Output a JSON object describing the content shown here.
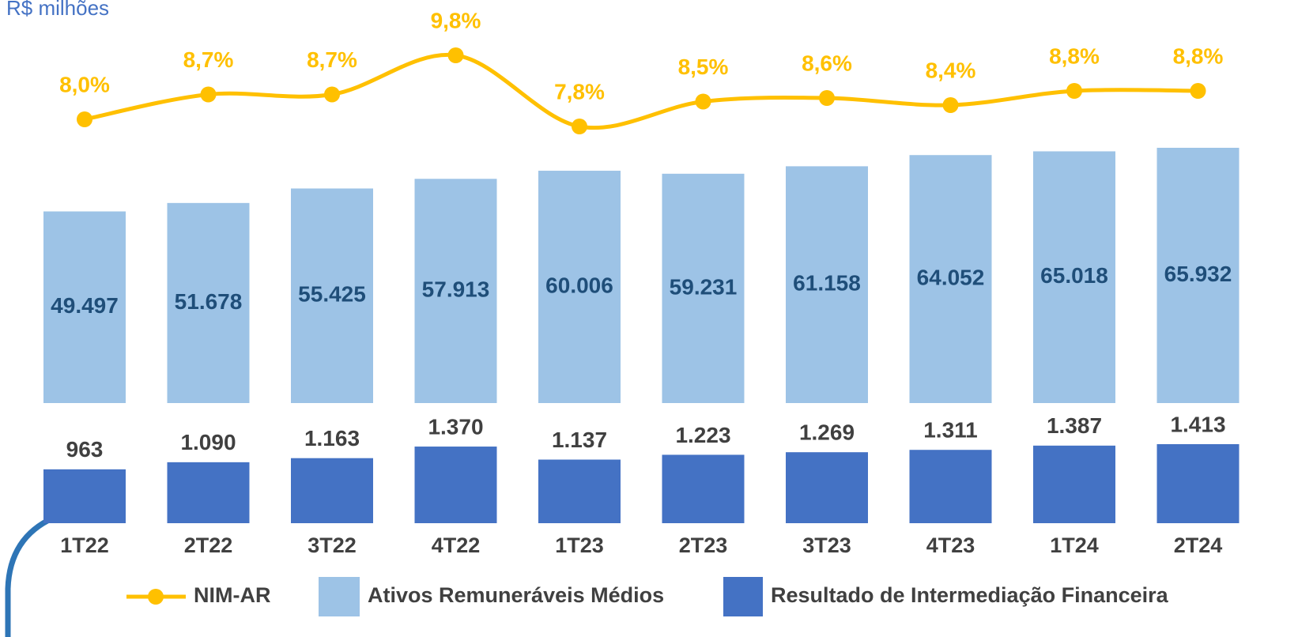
{
  "chart_data": {
    "type": "bar",
    "subtitle": "R$ milhões",
    "categories": [
      "1T22",
      "2T22",
      "3T22",
      "4T22",
      "1T23",
      "2T23",
      "3T23",
      "4T23",
      "1T24",
      "2T24"
    ],
    "series": [
      {
        "name": "NIM-AR",
        "type": "line",
        "color": "#ffc000",
        "values": [
          8.0,
          8.7,
          8.7,
          9.8,
          7.8,
          8.5,
          8.6,
          8.4,
          8.8,
          8.8
        ],
        "value_labels": [
          "8,0%",
          "8,7%",
          "8,7%",
          "9,8%",
          "7,8%",
          "8,5%",
          "8,6%",
          "8,4%",
          "8,8%",
          "8,8%"
        ]
      },
      {
        "name": "Ativos Remuneráveis Médios",
        "type": "bar",
        "color": "#9dc3e6",
        "values": [
          49497,
          51678,
          55425,
          57913,
          60006,
          59231,
          61158,
          64052,
          65018,
          65932
        ],
        "value_labels": [
          "49.497",
          "51.678",
          "55.425",
          "57.913",
          "60.006",
          "59.231",
          "61.158",
          "64.052",
          "65.018",
          "65.932"
        ]
      },
      {
        "name": "Resultado de Intermediação Financeira",
        "type": "bar",
        "color": "#4472c4",
        "values": [
          963,
          1090,
          1163,
          1370,
          1137,
          1223,
          1269,
          1311,
          1387,
          1413
        ],
        "value_labels": [
          "963",
          "1.090",
          "1.163",
          "1.370",
          "1.137",
          "1.223",
          "1.269",
          "1.311",
          "1.387",
          "1.413"
        ]
      }
    ]
  }
}
